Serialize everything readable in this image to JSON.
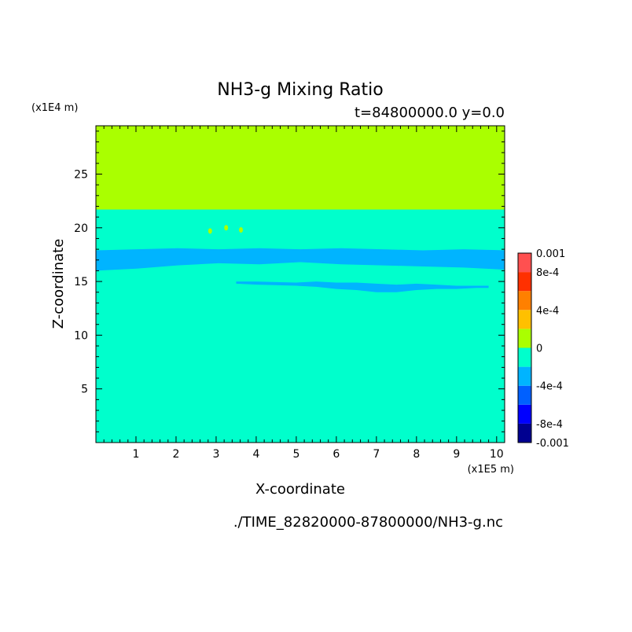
{
  "chart_data": {
    "type": "heatmap",
    "title": "NH3-g Mixing Ratio",
    "subtitle": "t=84800000.0 y=0.0",
    "xlabel": "X-coordinate",
    "ylabel": "Z-coordinate",
    "x_scale_label": "(x1E5 m)",
    "y_scale_label": "(x1E4 m)",
    "xlim": [
      0,
      10.2
    ],
    "ylim": [
      0,
      29.5
    ],
    "xticks": [
      "1",
      "2",
      "3",
      "4",
      "5",
      "6",
      "7",
      "8",
      "9",
      "10"
    ],
    "yticks": [
      "5",
      "10",
      "15",
      "20",
      "25"
    ],
    "source_file": "./TIME_82820000-87800000/NH3-g.nc",
    "background_color": "#00FFCC",
    "regions": [
      {
        "name": "upper",
        "color": "#AAFF00",
        "z_range": [
          21.7,
          29.5
        ]
      },
      {
        "name": "lower-band",
        "color": "#00B4FF",
        "x_range": [
          0,
          10.2
        ],
        "z_lower": [
          16.0,
          16.2,
          16.5,
          16.7,
          16.6,
          16.8,
          16.6,
          16.5,
          16.4,
          16.3,
          16.1
        ],
        "z_upper": [
          17.9,
          18.0,
          18.1,
          18.0,
          18.1,
          18.0,
          18.1,
          18.0,
          17.9,
          18.0,
          17.9
        ]
      },
      {
        "name": "thin-band",
        "color": "#00B4FF",
        "x_points": [
          3.5,
          4.0,
          5.0,
          5.5,
          6.0,
          6.5,
          7.0,
          7.5,
          8.0,
          8.5,
          9.0,
          9.5,
          9.8
        ],
        "z_upper": [
          15.0,
          15.0,
          14.9,
          15.0,
          14.9,
          14.9,
          14.8,
          14.7,
          14.8,
          14.7,
          14.6,
          14.6,
          14.6
        ],
        "z_lower": [
          14.8,
          14.7,
          14.6,
          14.5,
          14.3,
          14.2,
          14.0,
          14.0,
          14.2,
          14.3,
          14.3,
          14.4,
          14.4
        ]
      },
      {
        "name": "speck-1",
        "color": "#AAFF00",
        "x": 2.85,
        "z": 19.7
      },
      {
        "name": "speck-2",
        "color": "#AAFF00",
        "x": 3.62,
        "z": 19.8
      },
      {
        "name": "speck-3",
        "color": "#AAFF00",
        "x": 3.25,
        "z": 20.0
      }
    ],
    "colorbar": {
      "colors": [
        "#000090",
        "#0000FF",
        "#0060FF",
        "#00B4FF",
        "#00FFCC",
        "#AAFF00",
        "#FFC000",
        "#FF8000",
        "#FF3000",
        "#FF5050"
      ],
      "labels": [
        "-0.001",
        "-8e-4",
        "-4e-4",
        "0",
        "4e-4",
        "8e-4",
        "0.001"
      ],
      "label_positions": [
        0,
        1,
        3,
        5,
        7,
        9,
        10
      ]
    }
  }
}
